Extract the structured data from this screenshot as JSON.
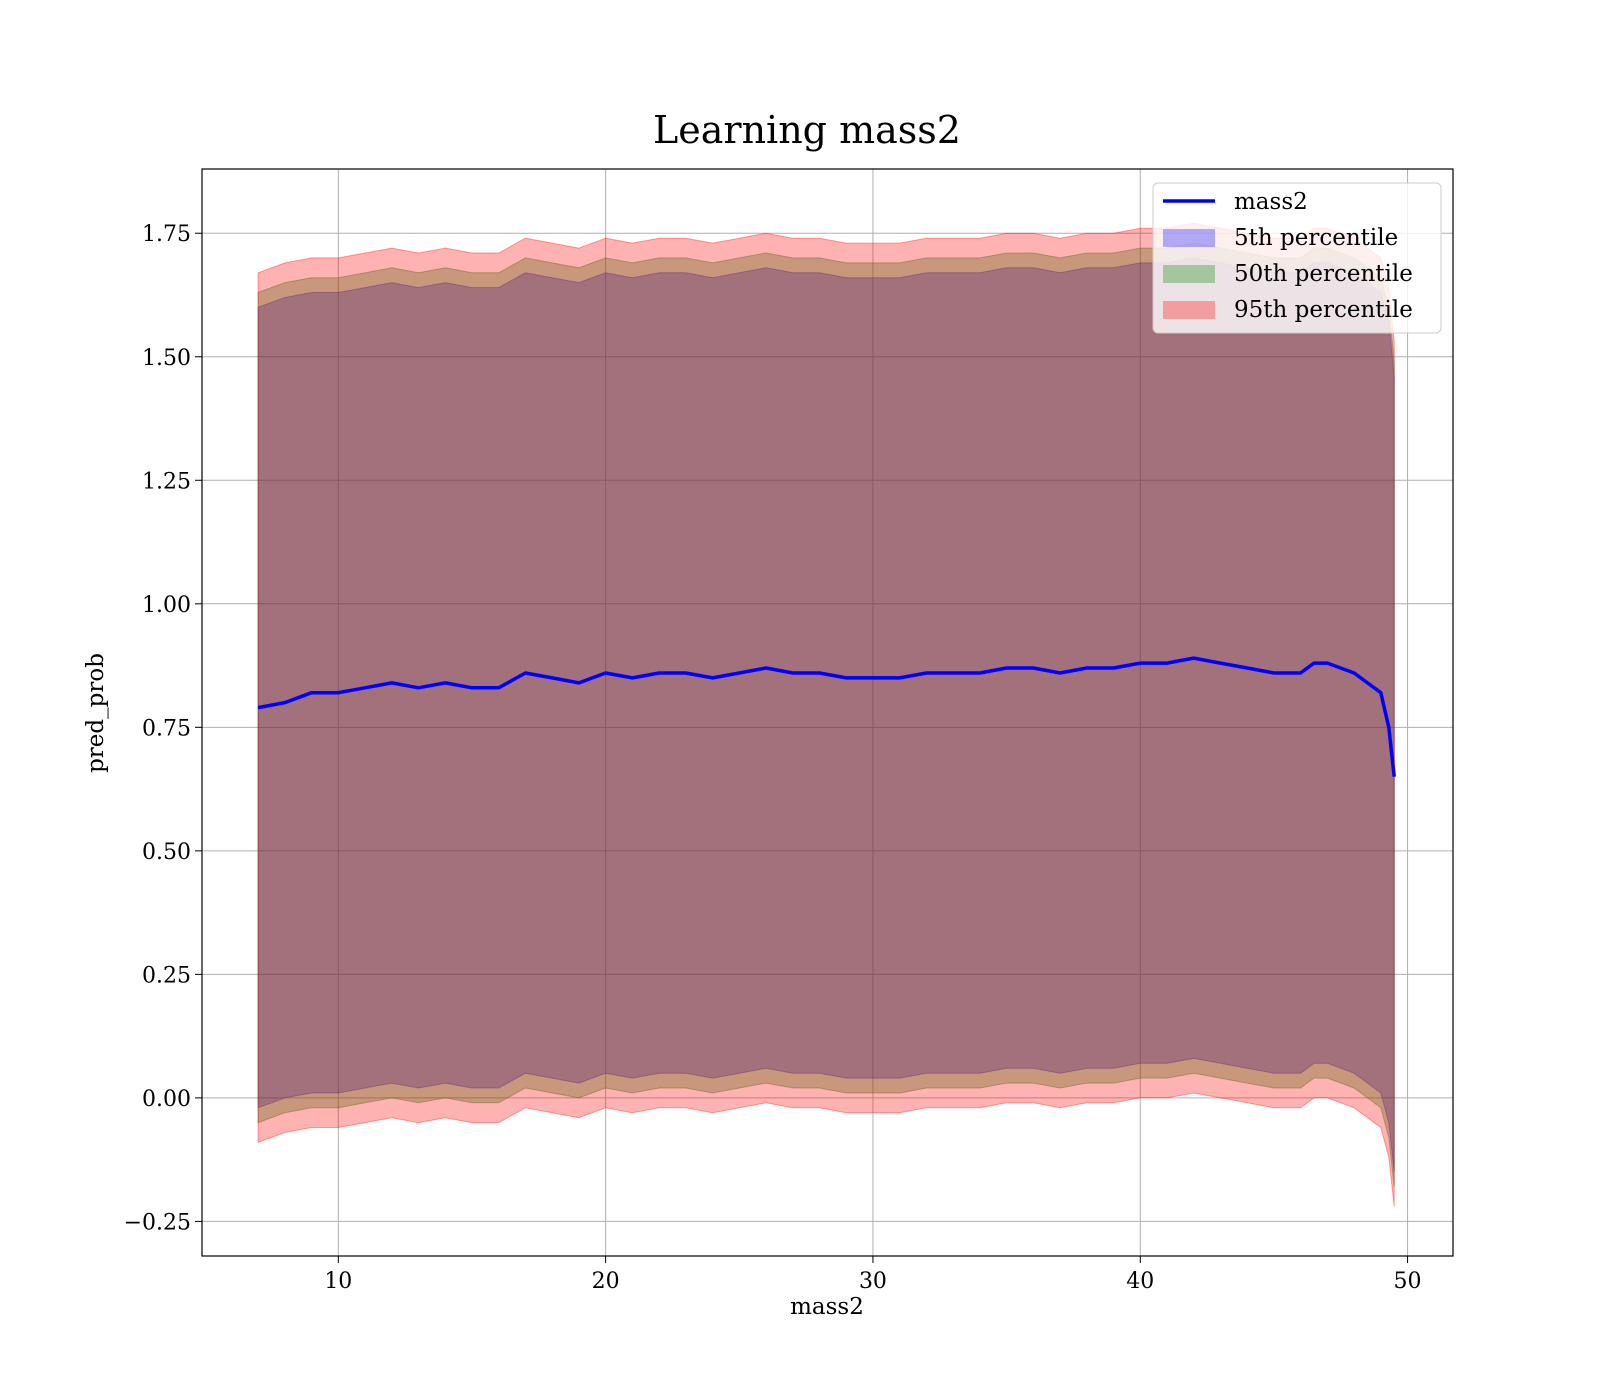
{
  "chart_data": {
    "type": "area",
    "title": "Learning mass2",
    "xlabel": "mass2",
    "ylabel": "pred_prob",
    "xlim": [
      4.9,
      51.7
    ],
    "ylim": [
      -0.32,
      1.88
    ],
    "xticks": [
      10,
      20,
      30,
      40,
      50
    ],
    "xtick_labels": [
      "10",
      "20",
      "30",
      "40",
      "50"
    ],
    "yticks": [
      -0.25,
      0.0,
      0.25,
      0.5,
      0.75,
      1.0,
      1.25,
      1.5,
      1.75
    ],
    "ytick_labels": [
      "−0.25",
      "0.00",
      "0.25",
      "0.50",
      "0.75",
      "1.00",
      "1.25",
      "1.50",
      "1.75"
    ],
    "grid": true,
    "legend_position": "top-right",
    "x": [
      7.0,
      8.0,
      9.0,
      10.0,
      11.0,
      12.0,
      13.0,
      14.0,
      15.0,
      16.0,
      17.0,
      18.0,
      19.0,
      20.0,
      21.0,
      22.0,
      23.0,
      24.0,
      25.0,
      26.0,
      27.0,
      28.0,
      29.0,
      30.0,
      31.0,
      32.0,
      33.0,
      34.0,
      35.0,
      36.0,
      37.0,
      38.0,
      39.0,
      40.0,
      41.0,
      42.0,
      43.0,
      44.0,
      45.0,
      46.0,
      46.5,
      47.0,
      48.0,
      48.5,
      49.0,
      49.3,
      49.5
    ],
    "line": {
      "name": "mass2",
      "color": "#0000ff",
      "y": [
        0.79,
        0.8,
        0.82,
        0.82,
        0.83,
        0.84,
        0.83,
        0.84,
        0.83,
        0.83,
        0.86,
        0.85,
        0.84,
        0.86,
        0.85,
        0.86,
        0.86,
        0.85,
        0.86,
        0.87,
        0.86,
        0.86,
        0.85,
        0.85,
        0.85,
        0.86,
        0.86,
        0.86,
        0.87,
        0.87,
        0.86,
        0.87,
        0.87,
        0.88,
        0.88,
        0.89,
        0.88,
        0.87,
        0.86,
        0.86,
        0.88,
        0.88,
        0.86,
        0.84,
        0.82,
        0.75,
        0.65
      ]
    },
    "bands": [
      {
        "name": "5th percentile",
        "color": "#0000ff",
        "lower": [
          -0.02,
          0.0,
          0.01,
          0.01,
          0.02,
          0.03,
          0.02,
          0.03,
          0.02,
          0.02,
          0.05,
          0.04,
          0.03,
          0.05,
          0.04,
          0.05,
          0.05,
          0.04,
          0.05,
          0.06,
          0.05,
          0.05,
          0.04,
          0.04,
          0.04,
          0.05,
          0.05,
          0.05,
          0.06,
          0.06,
          0.05,
          0.06,
          0.06,
          0.07,
          0.07,
          0.08,
          0.07,
          0.06,
          0.05,
          0.05,
          0.07,
          0.07,
          0.05,
          0.03,
          0.01,
          -0.05,
          -0.15
        ],
        "upper": [
          1.6,
          1.62,
          1.63,
          1.63,
          1.64,
          1.65,
          1.64,
          1.65,
          1.64,
          1.64,
          1.67,
          1.66,
          1.65,
          1.67,
          1.66,
          1.67,
          1.67,
          1.66,
          1.67,
          1.68,
          1.67,
          1.67,
          1.66,
          1.66,
          1.66,
          1.67,
          1.67,
          1.67,
          1.68,
          1.68,
          1.67,
          1.68,
          1.68,
          1.69,
          1.69,
          1.7,
          1.69,
          1.68,
          1.67,
          1.67,
          1.69,
          1.69,
          1.67,
          1.65,
          1.63,
          1.57,
          1.46
        ]
      },
      {
        "name": "50th percentile",
        "color": "#008000",
        "lower": [
          -0.05,
          -0.03,
          -0.02,
          -0.02,
          -0.01,
          0.0,
          -0.01,
          0.0,
          -0.01,
          -0.01,
          0.02,
          0.01,
          0.0,
          0.02,
          0.01,
          0.02,
          0.02,
          0.01,
          0.02,
          0.03,
          0.02,
          0.02,
          0.01,
          0.01,
          0.01,
          0.02,
          0.02,
          0.02,
          0.03,
          0.03,
          0.02,
          0.03,
          0.03,
          0.04,
          0.04,
          0.05,
          0.04,
          0.03,
          0.02,
          0.02,
          0.04,
          0.04,
          0.02,
          0.0,
          -0.02,
          -0.08,
          -0.18
        ],
        "upper": [
          1.63,
          1.65,
          1.66,
          1.66,
          1.67,
          1.68,
          1.67,
          1.68,
          1.67,
          1.67,
          1.7,
          1.69,
          1.68,
          1.7,
          1.69,
          1.7,
          1.7,
          1.69,
          1.7,
          1.71,
          1.7,
          1.7,
          1.69,
          1.69,
          1.69,
          1.7,
          1.7,
          1.7,
          1.71,
          1.71,
          1.7,
          1.71,
          1.71,
          1.72,
          1.72,
          1.73,
          1.72,
          1.71,
          1.7,
          1.7,
          1.72,
          1.72,
          1.7,
          1.68,
          1.66,
          1.6,
          1.49
        ]
      },
      {
        "name": "95th percentile",
        "color": "#ff0000",
        "lower": [
          -0.09,
          -0.07,
          -0.06,
          -0.06,
          -0.05,
          -0.04,
          -0.05,
          -0.04,
          -0.05,
          -0.05,
          -0.02,
          -0.03,
          -0.04,
          -0.02,
          -0.03,
          -0.02,
          -0.02,
          -0.03,
          -0.02,
          -0.01,
          -0.02,
          -0.02,
          -0.03,
          -0.03,
          -0.03,
          -0.02,
          -0.02,
          -0.02,
          -0.01,
          -0.01,
          -0.02,
          -0.01,
          -0.01,
          0.0,
          0.0,
          0.01,
          0.0,
          -0.01,
          -0.02,
          -0.02,
          0.0,
          0.0,
          -0.02,
          -0.04,
          -0.06,
          -0.12,
          -0.22
        ],
        "upper": [
          1.67,
          1.69,
          1.7,
          1.7,
          1.71,
          1.72,
          1.71,
          1.72,
          1.71,
          1.71,
          1.74,
          1.73,
          1.72,
          1.74,
          1.73,
          1.74,
          1.74,
          1.73,
          1.74,
          1.75,
          1.74,
          1.74,
          1.73,
          1.73,
          1.73,
          1.74,
          1.74,
          1.74,
          1.75,
          1.75,
          1.74,
          1.75,
          1.75,
          1.76,
          1.76,
          1.77,
          1.76,
          1.75,
          1.74,
          1.74,
          1.76,
          1.76,
          1.74,
          1.72,
          1.7,
          1.64,
          1.53
        ]
      }
    ]
  }
}
